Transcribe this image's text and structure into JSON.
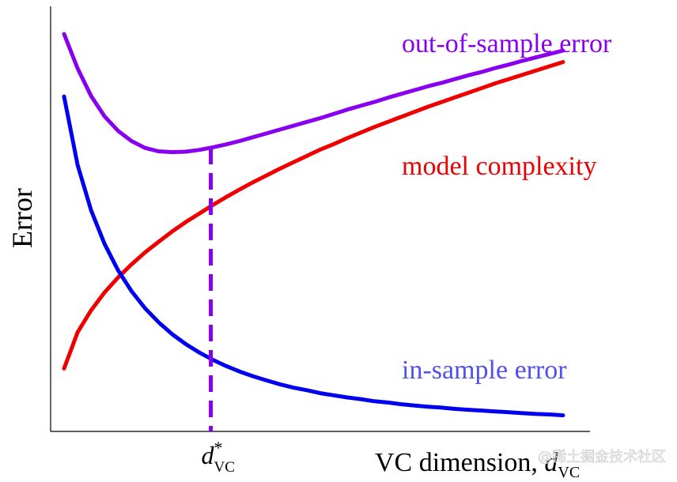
{
  "chart_data": {
    "type": "line",
    "ylabel": "Error",
    "xlabel": "VC dimension, ",
    "xlabel_symbol": "d",
    "xlabel_subscript": "VC",
    "optimum_marker": {
      "symbol": "d",
      "superscript": "*",
      "subscript": "VC",
      "x": 0.297
    },
    "xlim": [
      0,
      1
    ],
    "ylim": [
      0,
      1
    ],
    "grid": false,
    "x": [
      0.025,
      0.05,
      0.075,
      0.1,
      0.125,
      0.15,
      0.175,
      0.2,
      0.225,
      0.25,
      0.275,
      0.3,
      0.325,
      0.35,
      0.375,
      0.4,
      0.425,
      0.45,
      0.475,
      0.5,
      0.525,
      0.55,
      0.575,
      0.6,
      0.625,
      0.65,
      0.675,
      0.7,
      0.725,
      0.75,
      0.775,
      0.8,
      0.825,
      0.85,
      0.875,
      0.9,
      0.925,
      0.95
    ],
    "series": [
      {
        "name": "out-of-sample error",
        "color": "#8800ee",
        "values": [
          0.935,
          0.854,
          0.789,
          0.741,
          0.707,
          0.683,
          0.667,
          0.659,
          0.657,
          0.658,
          0.662,
          0.668,
          0.675,
          0.683,
          0.692,
          0.701,
          0.71,
          0.719,
          0.728,
          0.737,
          0.747,
          0.757,
          0.766,
          0.775,
          0.785,
          0.794,
          0.803,
          0.812,
          0.82,
          0.829,
          0.838,
          0.846,
          0.855,
          0.863,
          0.872,
          0.88,
          0.888,
          0.896
        ]
      },
      {
        "name": "model complexity",
        "color": "#ee0000",
        "values": [
          0.148,
          0.233,
          0.285,
          0.327,
          0.362,
          0.393,
          0.421,
          0.446,
          0.47,
          0.492,
          0.512,
          0.532,
          0.551,
          0.569,
          0.586,
          0.602,
          0.618,
          0.633,
          0.648,
          0.663,
          0.676,
          0.69,
          0.703,
          0.716,
          0.728,
          0.74,
          0.752,
          0.764,
          0.775,
          0.786,
          0.797,
          0.808,
          0.819,
          0.829,
          0.839,
          0.849,
          0.859,
          0.869
        ]
      },
      {
        "name": "in-sample error",
        "color": "#0000ee",
        "values": [
          0.788,
          0.627,
          0.52,
          0.441,
          0.379,
          0.33,
          0.29,
          0.257,
          0.229,
          0.206,
          0.186,
          0.169,
          0.154,
          0.141,
          0.13,
          0.12,
          0.111,
          0.103,
          0.097,
          0.09,
          0.085,
          0.08,
          0.076,
          0.071,
          0.068,
          0.064,
          0.061,
          0.058,
          0.056,
          0.053,
          0.051,
          0.049,
          0.047,
          0.045,
          0.043,
          0.041,
          0.04,
          0.038
        ]
      }
    ]
  },
  "watermark": "@稀土掘金技术社区"
}
